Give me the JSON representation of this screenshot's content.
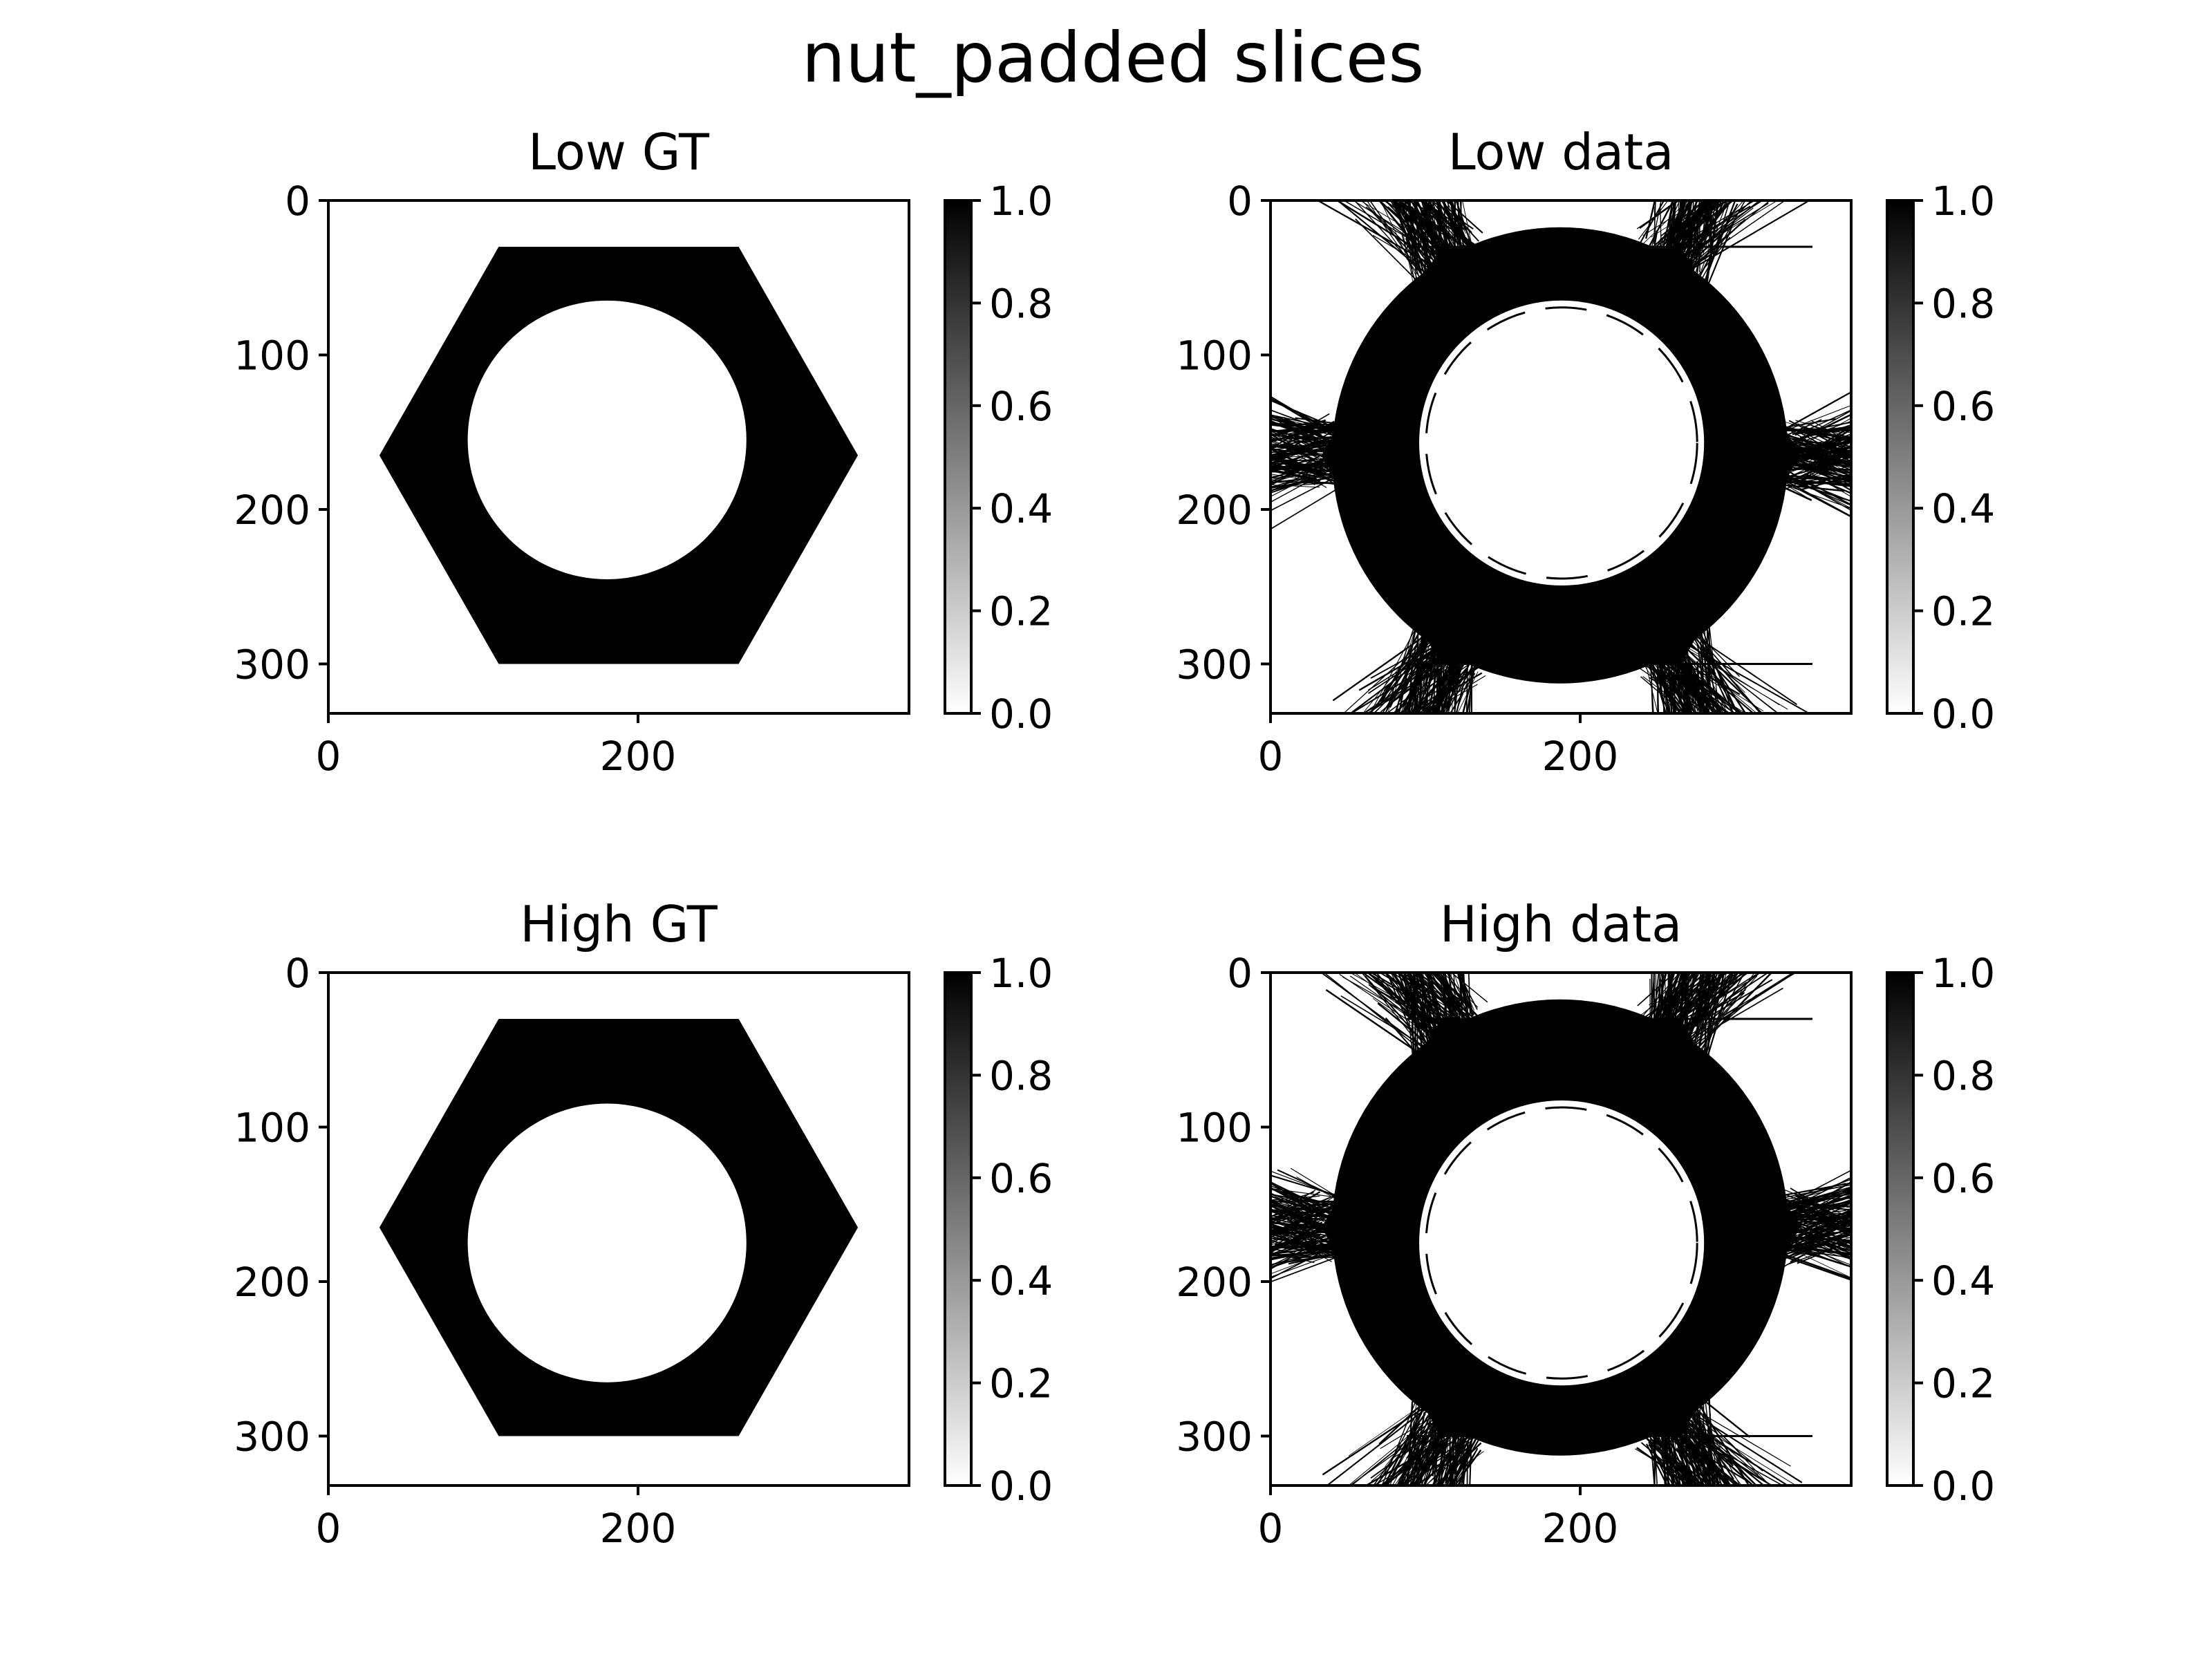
{
  "figure": {
    "title": "nut_padded slices"
  },
  "chart_data": [
    {
      "type": "heatmap",
      "title": "Low GT",
      "image": {
        "shape": "hexagonal nut with circular hole",
        "hexagon_vertices": [
          [
            110,
            30
          ],
          [
            265,
            30
          ],
          [
            342,
            165
          ],
          [
            265,
            300
          ],
          [
            110,
            300
          ],
          [
            33,
            165
          ]
        ],
        "hole_center": [
          180,
          155
        ],
        "hole_radius": 90,
        "streak_artifacts": false
      },
      "xlim": [
        0,
        375
      ],
      "ylim": [
        332,
        0
      ],
      "xticks": [
        0,
        200
      ],
      "yticks": [
        0,
        100,
        200,
        300
      ],
      "colorbar": {
        "min": 0.0,
        "max": 1.0,
        "ticks": [
          "0.0",
          "0.2",
          "0.4",
          "0.6",
          "0.8",
          "1.0"
        ],
        "cmap": "gray_r"
      }
    },
    {
      "type": "heatmap",
      "title": "Low data",
      "image": {
        "shape": "hexagonal nut with circular hole",
        "hexagon_vertices": [
          [
            110,
            30
          ],
          [
            265,
            30
          ],
          [
            342,
            165
          ],
          [
            265,
            300
          ],
          [
            110,
            300
          ],
          [
            33,
            165
          ]
        ],
        "hole_center": [
          188,
          157
        ],
        "hole_radius": 92,
        "streak_artifacts": true
      },
      "xlim": [
        0,
        375
      ],
      "ylim": [
        332,
        0
      ],
      "xticks": [
        0,
        200
      ],
      "yticks": [
        0,
        100,
        200,
        300
      ],
      "colorbar": {
        "min": 0.0,
        "max": 1.0,
        "ticks": [
          "0.0",
          "0.2",
          "0.4",
          "0.6",
          "0.8",
          "1.0"
        ],
        "cmap": "gray_r"
      }
    },
    {
      "type": "heatmap",
      "title": "High GT",
      "image": {
        "shape": "hexagonal nut with circular hole",
        "hexagon_vertices": [
          [
            110,
            30
          ],
          [
            265,
            30
          ],
          [
            342,
            165
          ],
          [
            265,
            300
          ],
          [
            110,
            300
          ],
          [
            33,
            165
          ]
        ],
        "hole_center": [
          180,
          175
        ],
        "hole_radius": 90,
        "streak_artifacts": false
      },
      "xlim": [
        0,
        375
      ],
      "ylim": [
        332,
        0
      ],
      "xticks": [
        0,
        200
      ],
      "yticks": [
        0,
        100,
        200,
        300
      ],
      "colorbar": {
        "min": 0.0,
        "max": 1.0,
        "ticks": [
          "0.0",
          "0.2",
          "0.4",
          "0.6",
          "0.8",
          "1.0"
        ],
        "cmap": "gray_r"
      }
    },
    {
      "type": "heatmap",
      "title": "High data",
      "image": {
        "shape": "hexagonal nut with circular hole",
        "hexagon_vertices": [
          [
            110,
            30
          ],
          [
            265,
            30
          ],
          [
            342,
            165
          ],
          [
            265,
            300
          ],
          [
            110,
            300
          ],
          [
            33,
            165
          ]
        ],
        "hole_center": [
          188,
          175
        ],
        "hole_radius": 92,
        "streak_artifacts": true
      },
      "xlim": [
        0,
        375
      ],
      "ylim": [
        332,
        0
      ],
      "xticks": [
        0,
        200
      ],
      "yticks": [
        0,
        100,
        200,
        300
      ],
      "colorbar": {
        "min": 0.0,
        "max": 1.0,
        "ticks": [
          "0.0",
          "0.2",
          "0.4",
          "0.6",
          "0.8",
          "1.0"
        ],
        "cmap": "gray_r"
      }
    }
  ]
}
